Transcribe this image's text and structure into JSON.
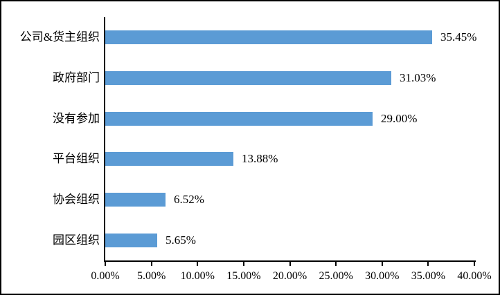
{
  "chart_data": {
    "type": "bar",
    "orientation": "horizontal",
    "categories": [
      "公司&货主组织",
      "政府部门",
      "没有参加",
      "平台组织",
      "协会组织",
      "园区组织"
    ],
    "values": [
      35.45,
      31.03,
      29.0,
      13.88,
      6.52,
      5.65
    ],
    "value_labels": [
      "35.45%",
      "31.03%",
      "29.00%",
      "13.88%",
      "6.52%",
      "5.65%"
    ],
    "x_ticks": [
      "0.00%",
      "5.00%",
      "10.00%",
      "15.00%",
      "20.00%",
      "25.00%",
      "30.00%",
      "35.00%",
      "40.00%"
    ],
    "xlim": [
      0,
      40
    ],
    "grid": false,
    "legend": false,
    "bar_color": "#5B9BD5",
    "axis_color": "#000000",
    "text_color": "#000000",
    "background_color": "#FFFFFF"
  }
}
